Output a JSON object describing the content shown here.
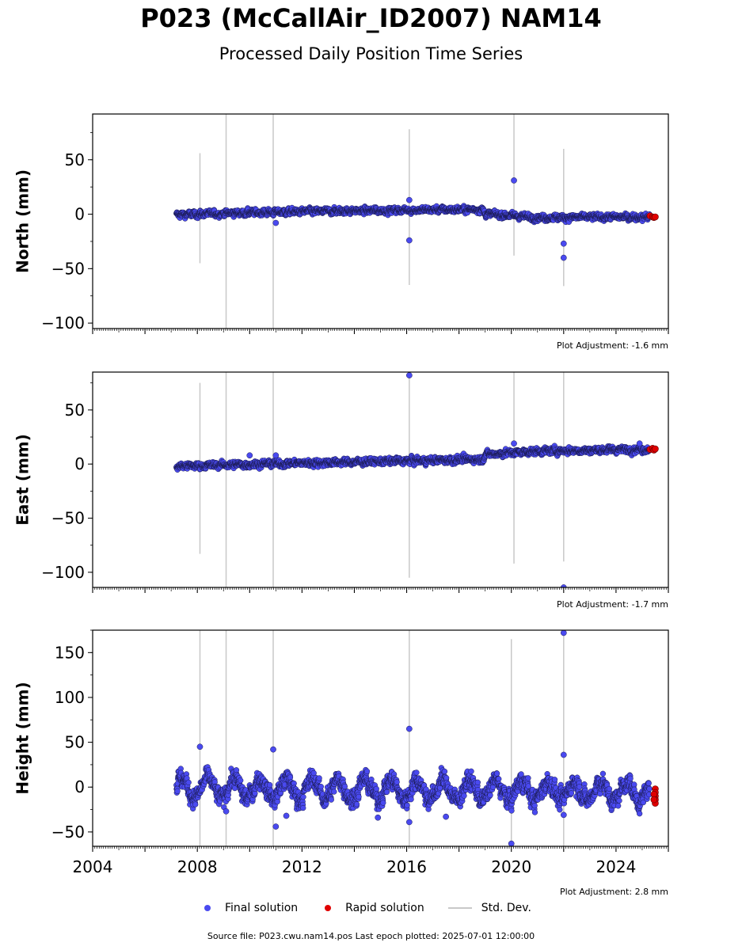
{
  "title": "P023 (McCallAir_ID2007) NAM14",
  "subtitle": "Processed Daily Position Time Series",
  "legend": {
    "final_label": "Final solution",
    "rapid_label": "Rapid solution",
    "std_label": "Std. Dev."
  },
  "footer": "Source file: P023.cwu.nam14.pos  Last epoch plotted: 2025-07-01 12:00:00",
  "colors": {
    "final": "#4a4af0",
    "rapid": "#e00000",
    "std": "#c8c8c8",
    "marker_edge": "#1a1a50"
  },
  "chart_data": [
    {
      "type": "scatter",
      "ylabel": "North (mm)",
      "ylim": [
        -105,
        92
      ],
      "yticks": [
        50,
        0,
        -50,
        -100
      ],
      "adjustment": "Plot Adjustment: -1.6 mm",
      "xlim": [
        2004.0,
        2026.0
      ],
      "xticks": [],
      "trend": [
        [
          2007.2,
          -0.5
        ],
        [
          2010.0,
          1.5
        ],
        [
          2015.0,
          3.5
        ],
        [
          2018.9,
          4.5
        ],
        [
          2019.0,
          0.5
        ],
        [
          2021.0,
          -3.0
        ],
        [
          2025.5,
          -2.5
        ]
      ],
      "noise": 1.2,
      "seasonal": 0,
      "outliers": [
        [
          2016.1,
          13
        ],
        [
          2016.1,
          -24
        ],
        [
          2020.1,
          31
        ],
        [
          2022.0,
          -27
        ],
        [
          2022.0,
          -40
        ],
        [
          2011.0,
          -8
        ]
      ],
      "stds": [
        [
          2008.1,
          -45,
          56
        ],
        [
          2009.1,
          -105,
          92
        ],
        [
          2010.9,
          -105,
          92
        ],
        [
          2016.1,
          -65,
          78
        ],
        [
          2020.1,
          -38,
          92
        ],
        [
          2022.0,
          -66,
          60
        ]
      ],
      "rapid": [
        [
          2025.3,
          -1.5
        ],
        [
          2025.4,
          -2.5
        ],
        [
          2025.45,
          -3.0
        ],
        [
          2025.5,
          -2.5
        ]
      ]
    },
    {
      "type": "scatter",
      "ylabel": "East (mm)",
      "ylim": [
        -114,
        85
      ],
      "yticks": [
        50,
        0,
        -50,
        -100
      ],
      "adjustment": "Plot Adjustment: -1.7 mm",
      "xlim": [
        2004.0,
        2026.0
      ],
      "xticks": [],
      "trend": [
        [
          2007.2,
          -2.0
        ],
        [
          2012.0,
          1.0
        ],
        [
          2016.0,
          3.0
        ],
        [
          2018.9,
          4.5
        ],
        [
          2019.0,
          9.0
        ],
        [
          2021.0,
          12.0
        ],
        [
          2025.5,
          14.0
        ]
      ],
      "noise": 1.3,
      "seasonal": 0,
      "outliers": [
        [
          2016.1,
          82
        ],
        [
          2020.1,
          19
        ],
        [
          2022.0,
          -114
        ],
        [
          2010.0,
          8
        ],
        [
          2011.0,
          8
        ],
        [
          2024.9,
          19
        ]
      ],
      "stds": [
        [
          2008.1,
          -83,
          75
        ],
        [
          2009.1,
          -114,
          85
        ],
        [
          2010.9,
          -114,
          85
        ],
        [
          2016.1,
          -105,
          85
        ],
        [
          2020.1,
          -92,
          85
        ],
        [
          2022.0,
          -90,
          85
        ]
      ],
      "rapid": [
        [
          2025.3,
          13.5
        ],
        [
          2025.4,
          14.5
        ],
        [
          2025.45,
          13.0
        ],
        [
          2025.5,
          14.0
        ]
      ]
    },
    {
      "type": "scatter",
      "ylabel": "Height (mm)",
      "ylim": [
        -66,
        175
      ],
      "yticks": [
        150,
        100,
        50,
        0,
        -50
      ],
      "adjustment": "Plot Adjustment: 2.8 mm",
      "xlim": [
        2004.0,
        2026.0
      ],
      "xticks": [
        "2004",
        "2008",
        "2012",
        "2016",
        "2020",
        "2024"
      ],
      "trend": [
        [
          2007.2,
          -1.0
        ],
        [
          2025.5,
          -5.0
        ]
      ],
      "noise": 4.5,
      "seasonal": 11,
      "outliers": [
        [
          2008.1,
          45
        ],
        [
          2009.1,
          -27
        ],
        [
          2010.9,
          42
        ],
        [
          2011.0,
          -44
        ],
        [
          2011.4,
          -32
        ],
        [
          2014.9,
          -34
        ],
        [
          2016.1,
          65
        ],
        [
          2016.1,
          -39
        ],
        [
          2017.5,
          -33
        ],
        [
          2020.0,
          -63
        ],
        [
          2022.0,
          172
        ],
        [
          2022.0,
          36
        ],
        [
          2022.0,
          -31
        ]
      ],
      "stds": [
        [
          2008.1,
          -66,
          175
        ],
        [
          2009.1,
          -66,
          175
        ],
        [
          2010.9,
          -66,
          175
        ],
        [
          2016.1,
          -66,
          175
        ],
        [
          2020.0,
          -66,
          165
        ],
        [
          2022.0,
          -66,
          175
        ]
      ],
      "rapid": [
        [
          2025.5,
          -2
        ],
        [
          2025.5,
          -6
        ],
        [
          2025.5,
          -10
        ],
        [
          2025.5,
          -14
        ],
        [
          2025.5,
          -18
        ],
        [
          2025.45,
          -8
        ],
        [
          2025.45,
          -14
        ]
      ]
    }
  ]
}
